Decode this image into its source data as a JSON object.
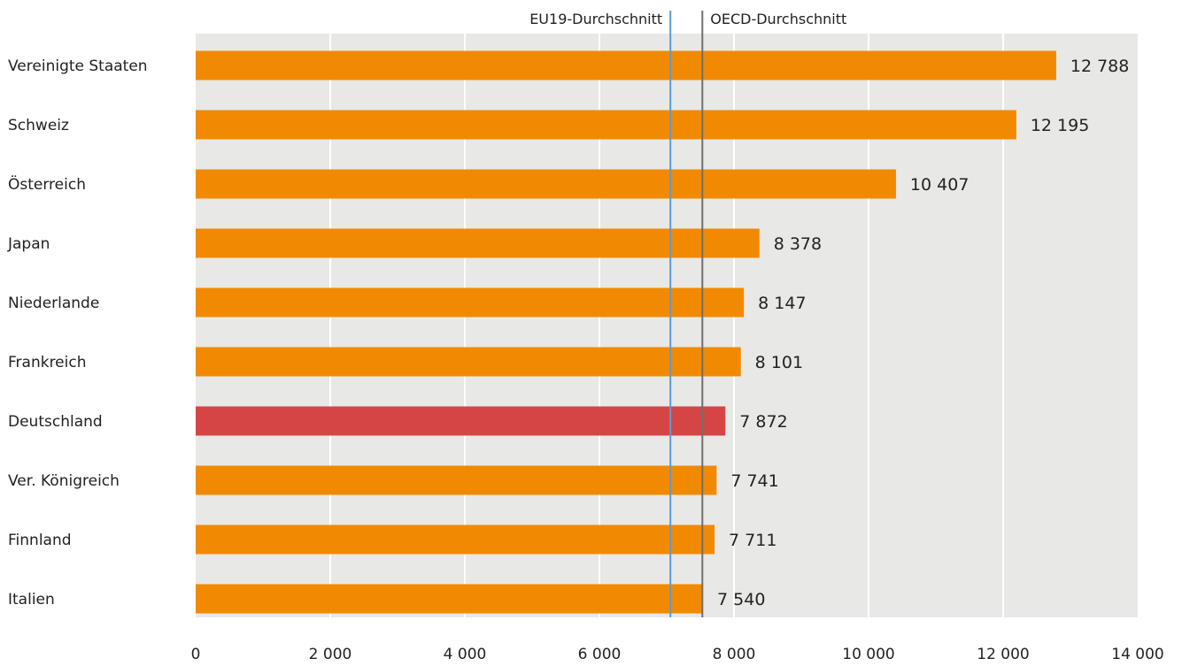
{
  "chart_data": {
    "type": "bar",
    "orientation": "horizontal",
    "categories": [
      "Vereinigte Staaten",
      "Schweiz",
      "Österreich",
      "Japan",
      "Niederlande",
      "Frankreich",
      "Deutschland",
      "Ver. Königreich",
      "Finnland",
      "Italien"
    ],
    "values": [
      12788,
      12195,
      10407,
      8378,
      8147,
      8101,
      7872,
      7741,
      7711,
      7540
    ],
    "value_labels": [
      "12 788",
      "12 195",
      "10 407",
      "8 378",
      "8 147",
      "8 101",
      "7 872",
      "7 741",
      "7 711",
      "7 540"
    ],
    "highlight": "Deutschland",
    "xlim": [
      0,
      14000
    ],
    "xticks": [
      0,
      2000,
      4000,
      6000,
      8000,
      10000,
      12000,
      14000
    ],
    "xtick_labels": [
      "0",
      "2 000",
      "4 000",
      "6 000",
      "8 000",
      "10 000",
      "12 000",
      "14 000"
    ],
    "grid": true,
    "reference_lines": [
      {
        "label": "EU19-Durchschnitt",
        "value": 7055,
        "color": "#5b9bd5"
      },
      {
        "label": "OECD-Durchschnitt",
        "value": 7530,
        "color": "#707070"
      }
    ],
    "colors": {
      "bar": "#f18a00",
      "highlight": "#d64545",
      "plot_bg": "#e8e8e6",
      "grid": "#ffffff"
    }
  }
}
